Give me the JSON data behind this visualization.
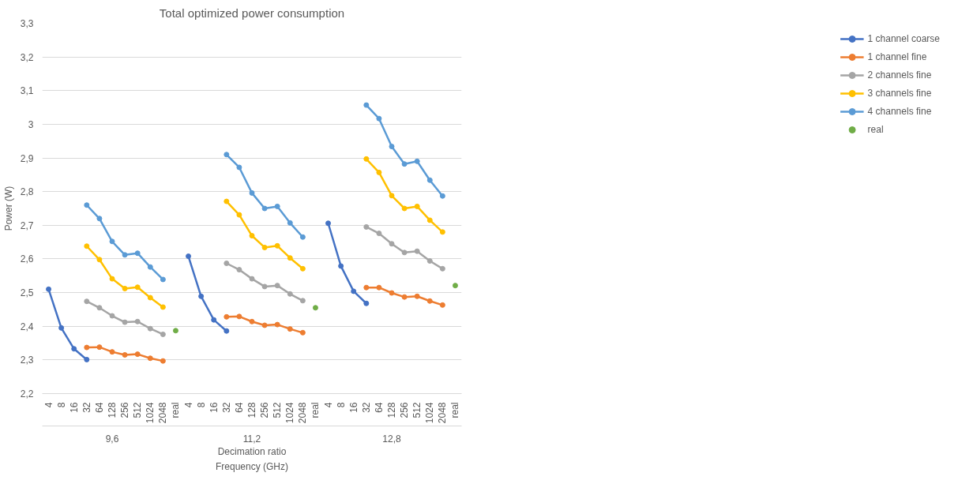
{
  "chart_data": {
    "type": "line",
    "title": "Total optimized power consumption",
    "xlabel": "Decimation ratio",
    "ylabel": "Power (W)",
    "categories": [
      "4",
      "8",
      "16",
      "32",
      "64",
      "128",
      "256",
      "512",
      "1024",
      "2048",
      "real",
      "4",
      "8",
      "16",
      "32",
      "64",
      "128",
      "256",
      "512",
      "1024",
      "2048",
      "real",
      "4",
      "8",
      "16",
      "32",
      "64",
      "128",
      "256",
      "512",
      "1024",
      "2048",
      "real"
    ],
    "annotations": [
      "9,6",
      "11,2",
      "12,8",
      "Frequency (GHz)"
    ],
    "ylim": [
      2.2,
      3.3
    ],
    "yticks": [
      {
        "value": 2.2,
        "label": "2,2"
      },
      {
        "value": 2.3,
        "label": "2,3"
      },
      {
        "value": 2.4,
        "label": "2,4"
      },
      {
        "value": 2.5,
        "label": "2,5"
      },
      {
        "value": 2.6,
        "label": "2,6"
      },
      {
        "value": 2.7,
        "label": "2,7"
      },
      {
        "value": 2.8,
        "label": "2,8"
      },
      {
        "value": 2.9,
        "label": "2,9"
      },
      3,
      {
        "value": 3.1,
        "label": "3,1"
      },
      {
        "value": 3.2,
        "label": "3,2"
      },
      {
        "value": 3.3,
        "label": "3,3"
      }
    ],
    "grid": "y",
    "legend": "right",
    "marker": "circle",
    "line_style": "solid",
    "series": [
      {
        "name": "1 channel coarse",
        "color": "#4472c4",
        "values": [
          2.51,
          2.395,
          2.333,
          2.301,
          null,
          null,
          null,
          null,
          null,
          null,
          null,
          2.608,
          2.489,
          2.419,
          2.386,
          null,
          null,
          null,
          null,
          null,
          null,
          null,
          2.706,
          2.579,
          2.504,
          2.468,
          null,
          null,
          null,
          null,
          null,
          null,
          null
        ]
      },
      {
        "name": "1 channel fine",
        "color": "#ed7d31",
        "values": [
          null,
          null,
          null,
          2.337,
          2.338,
          2.324,
          2.315,
          2.317,
          2.305,
          2.297,
          null,
          null,
          null,
          null,
          2.428,
          2.429,
          2.414,
          2.403,
          2.405,
          2.392,
          2.381,
          null,
          null,
          null,
          null,
          2.515,
          2.515,
          2.499,
          2.487,
          2.489,
          2.475,
          2.463,
          null
        ]
      },
      {
        "name": "2 channels fine",
        "color": "#a5a5a5",
        "values": [
          null,
          null,
          null,
          2.474,
          2.455,
          2.431,
          2.412,
          2.414,
          2.393,
          2.376,
          null,
          null,
          null,
          null,
          2.587,
          2.568,
          2.541,
          2.518,
          2.521,
          2.496,
          2.476,
          null,
          null,
          null,
          null,
          2.695,
          2.676,
          2.645,
          2.619,
          2.623,
          2.594,
          2.571,
          null
        ]
      },
      {
        "name": "3 channels fine",
        "color": "#ffc000",
        "values": [
          null,
          null,
          null,
          2.638,
          2.598,
          2.541,
          2.512,
          2.516,
          2.485,
          2.457,
          null,
          null,
          null,
          null,
          2.771,
          2.731,
          2.669,
          2.634,
          2.639,
          2.603,
          2.571,
          null,
          null,
          null,
          null,
          2.897,
          2.857,
          2.788,
          2.75,
          2.756,
          2.715,
          2.68,
          null
        ]
      },
      {
        "name": "4 channels fine",
        "color": "#5b9bd5",
        "values": [
          null,
          null,
          null,
          2.76,
          2.72,
          2.652,
          2.612,
          2.617,
          2.576,
          2.539,
          null,
          null,
          null,
          null,
          2.91,
          2.872,
          2.796,
          2.75,
          2.756,
          2.707,
          2.665,
          null,
          null,
          null,
          null,
          3.057,
          3.017,
          2.934,
          2.882,
          2.89,
          2.834,
          2.787,
          null
        ]
      },
      {
        "name": "real",
        "type": "scatter",
        "color": "#70ad47",
        "values": [
          null,
          null,
          null,
          null,
          null,
          null,
          null,
          null,
          null,
          null,
          2.387,
          null,
          null,
          null,
          null,
          null,
          null,
          null,
          null,
          null,
          null,
          2.455,
          null,
          null,
          null,
          null,
          null,
          null,
          null,
          null,
          null,
          null,
          2.521
        ]
      }
    ]
  }
}
